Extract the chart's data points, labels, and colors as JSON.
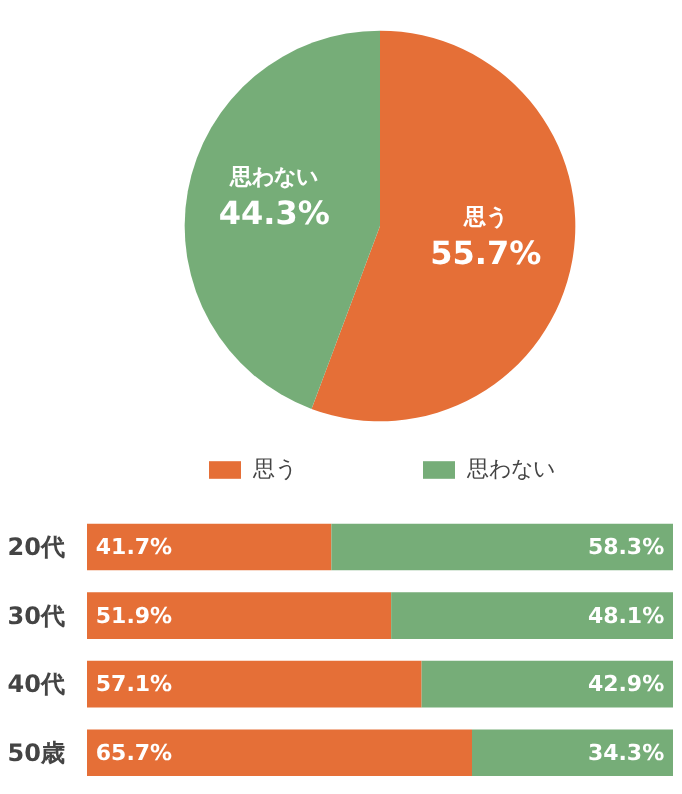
{
  "chart_data": [
    {
      "type": "pie",
      "categories": [
        "思う",
        "思わない"
      ],
      "values": [
        55.7,
        44.3
      ],
      "colors": [
        "#e56f37",
        "#76ad78"
      ],
      "value_labels": [
        "55.7%",
        "44.3%"
      ],
      "legend": false
    },
    {
      "type": "bar",
      "orientation": "horizontal",
      "stacked": true,
      "categories": [
        "20代",
        "30代",
        "40代",
        "50歳"
      ],
      "xlim": [
        0,
        100
      ],
      "tick_labels": "y",
      "grid": false,
      "legend": "top",
      "series": [
        {
          "name": "思う",
          "color": "#e56f37",
          "values": [
            41.7,
            51.9,
            57.1,
            65.7
          ],
          "value_labels": [
            "41.7%",
            "51.9%",
            "57.1%",
            "65.7%"
          ]
        },
        {
          "name": "思わない",
          "color": "#76ad78",
          "values": [
            58.3,
            48.1,
            42.9,
            34.3
          ],
          "value_labels": [
            "58.3%",
            "48.1%",
            "42.9%",
            "34.3%"
          ]
        }
      ]
    }
  ]
}
